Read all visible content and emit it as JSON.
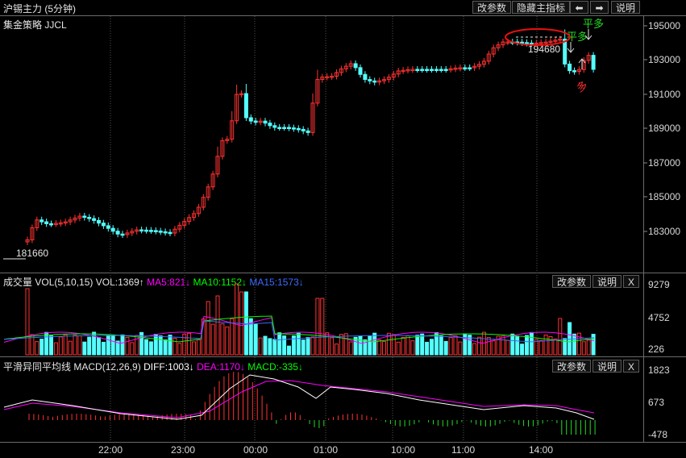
{
  "window": {
    "title": "沪锡主力 (5分钟)",
    "buttons": {
      "params": "改参数",
      "hide_indicator": "隐藏主指标",
      "left_arrow": "⬅",
      "right_arrow": "➡",
      "help": "说明"
    }
  },
  "main_panel": {
    "strategy_label": "集金策略 JJCL",
    "price_axis": [
      "195000",
      "193000",
      "191000",
      "189000",
      "187000",
      "185000",
      "183000"
    ],
    "low_marker": "181660",
    "high_marker": "194680",
    "signals": {
      "ping_duo_1": "平多",
      "ping_duo_2": "平多",
      "duo": "多"
    },
    "colors": {
      "up": "#ff3232",
      "down": "#54ffff",
      "marker_ellipse": "#e81010"
    }
  },
  "volume_panel": {
    "title": "成交量",
    "indicator": "VOL(5,10,15)",
    "vol": "VOL:1369↑",
    "ma5": "MA5:821↓",
    "ma10": "MA10:1152↓",
    "ma15": "MA15:1573↓",
    "axis": [
      "9279",
      "4752",
      "226"
    ],
    "buttons": {
      "params": "改参数",
      "help": "说明",
      "close": "X"
    },
    "colors": {
      "ma5": "#ff00ff",
      "ma10": "#00ff00",
      "ma15": "#3b6bff"
    }
  },
  "macd_panel": {
    "title": "平滑异同平均线",
    "indicator": "MACD(12,26,9)",
    "diff": "DIFF:1003↓",
    "dea": "DEA:1170↓",
    "macd": "MACD:-335↓",
    "axis": [
      "1823",
      "673",
      "-478"
    ],
    "buttons": {
      "params": "改参数",
      "help": "说明",
      "close": "X"
    },
    "colors": {
      "diff": "#ffffff",
      "dea": "#ff00ff",
      "macd_label": "#00ff00"
    }
  },
  "time_axis": [
    "22:00",
    "23:00",
    "00:00",
    "01:00",
    "10:00",
    "11:00",
    "14:00"
  ]
}
